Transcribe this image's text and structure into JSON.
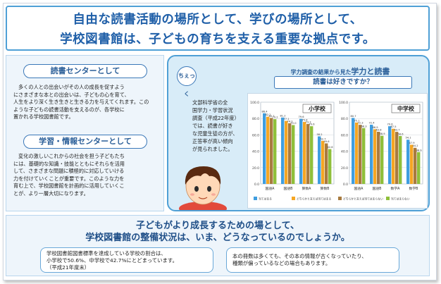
{
  "title": {
    "line1": "自由な読書活動の場所として、学びの場所として、",
    "line2": "学校図書館は、子どもの育ちを支える重要な拠点です。"
  },
  "reading_center": {
    "label": "読書センターとして",
    "lines": [
      "多くの人との出会いがその人の成長を促すよう",
      "にさまざまな本との出会いは、子どもの心を育て、",
      "人生をより深く生き生きと生きる力を与えてくれます。この",
      "ような子どもの読書活動を支えるのが、各学校に",
      "置かれる学校図書館です。"
    ]
  },
  "learning_center": {
    "label": "学習・情報センターとして",
    "lines": [
      "変化の激しいこれからの社会を担う子どもたち",
      "には、基礎的な知識・技能とともにそれらを活用",
      "して、さまざまな問題に積極的に対応していける",
      "力を付けていくことが重要です。このような力を",
      "育む上で、学校図書館を計画的に活用していくこ",
      "とが、より一層大切になります。"
    ]
  },
  "check": {
    "badge": "ちぇっく",
    "lines": [
      "文部科学省の全",
      "国学力・学習状況",
      "調査（平成22年度）",
      "では、読書が好き",
      "な児童生徒の方が、",
      "正答率が高い傾向",
      "が見られました。"
    ]
  },
  "chart_heading": {
    "small": "学力調査の結果から見た",
    "big": "学力と読書",
    "question": "読書は好きですか？"
  },
  "chart_data": [
    {
      "type": "bar",
      "title": "小学校",
      "categories": [
        "国語A",
        "国語B",
        "算数A",
        "算数B"
      ],
      "ylim": [
        0,
        100
      ],
      "yticks": [
        0,
        20,
        40,
        60,
        80,
        100
      ],
      "series": [
        {
          "name": "当てはまる",
          "values": [
            86.4,
            81.2,
            79.6,
            58.2
          ]
        },
        {
          "name": "どちらかと言えば当てはまる",
          "values": [
            82.2,
            77.1,
            75.8,
            52.7
          ]
        },
        {
          "name": "どちらかと言えば当てはまらない",
          "values": [
            80.7,
            74.2,
            73.3,
            49.6
          ]
        },
        {
          "name": "当てはまらない",
          "values": [
            79.2,
            72.0,
            70.6,
            42.6
          ]
        }
      ],
      "colors": [
        "#3f9ee0",
        "#f5a623",
        "#a87b3f",
        "#8fbf3a"
      ]
    },
    {
      "type": "bar",
      "title": "中学校",
      "categories": [
        "国語A",
        "国語B",
        "数学A",
        "数学B"
      ],
      "ylim": [
        0,
        100
      ],
      "yticks": [
        0,
        20,
        40,
        60,
        80,
        100
      ],
      "series": [
        {
          "name": "当てはまる",
          "values": [
            80.7,
            72.4,
            70.6,
            54.1
          ]
        },
        {
          "name": "どちらかと言えば当てはまる",
          "values": [
            75.1,
            66.9,
            67.5,
            47.9
          ]
        },
        {
          "name": "どちらかと言えば当てはまらない",
          "values": [
            72.3,
            63.8,
            63.7,
            44.2
          ]
        },
        {
          "name": "当てはまらない",
          "values": [
            68.3,
            58.9,
            58.6,
            38.9
          ]
        }
      ],
      "colors": [
        "#3f9ee0",
        "#f5a623",
        "#a87b3f",
        "#8fbf3a"
      ]
    }
  ],
  "legend": [
    "当てはまる",
    "どちらかと言えば当てはまる",
    "どちらかと言えば当てはまらない",
    "当てはまらない"
  ],
  "bottom": {
    "line1": "子どもがより成長するための場として、",
    "line2": "学校図書館の整備状況は、いま、どうなっているのでしょうか。",
    "left_note": [
      "学校図書館図書標準を達成している学校の割合は、",
      "小学校で50.6%、中学校で42.7%にとどまっています。",
      "（平成21年度末）"
    ],
    "right_note": [
      "本の冊数は多くても、その本の情報が古くなっていたり、",
      "種類が偏っているなどの場合もあります。"
    ]
  }
}
